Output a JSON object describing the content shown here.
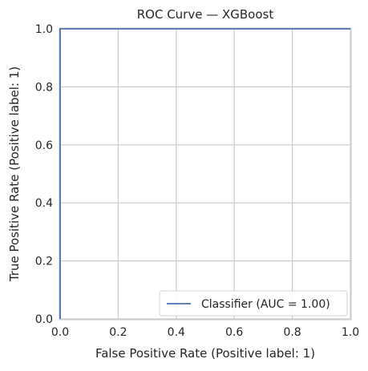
{
  "chart_data": {
    "type": "line",
    "title": "ROC Curve — XGBoost",
    "xlabel": "False Positive Rate (Positive label: 1)",
    "ylabel": "True Positive Rate (Positive label: 1)",
    "xlim": [
      0,
      1
    ],
    "ylim": [
      0,
      1
    ],
    "xticks": [
      "0.0",
      "0.2",
      "0.4",
      "0.6",
      "0.8",
      "1.0"
    ],
    "yticks": [
      "0.0",
      "0.2",
      "0.4",
      "0.6",
      "0.8",
      "1.0"
    ],
    "grid": true,
    "legend_position": "bottom-right",
    "series": [
      {
        "name": "Classifier (AUC = 1.00)",
        "color": "#4c72b0",
        "x": [
          0,
          0,
          1
        ],
        "y": [
          0,
          1,
          1
        ]
      }
    ]
  }
}
